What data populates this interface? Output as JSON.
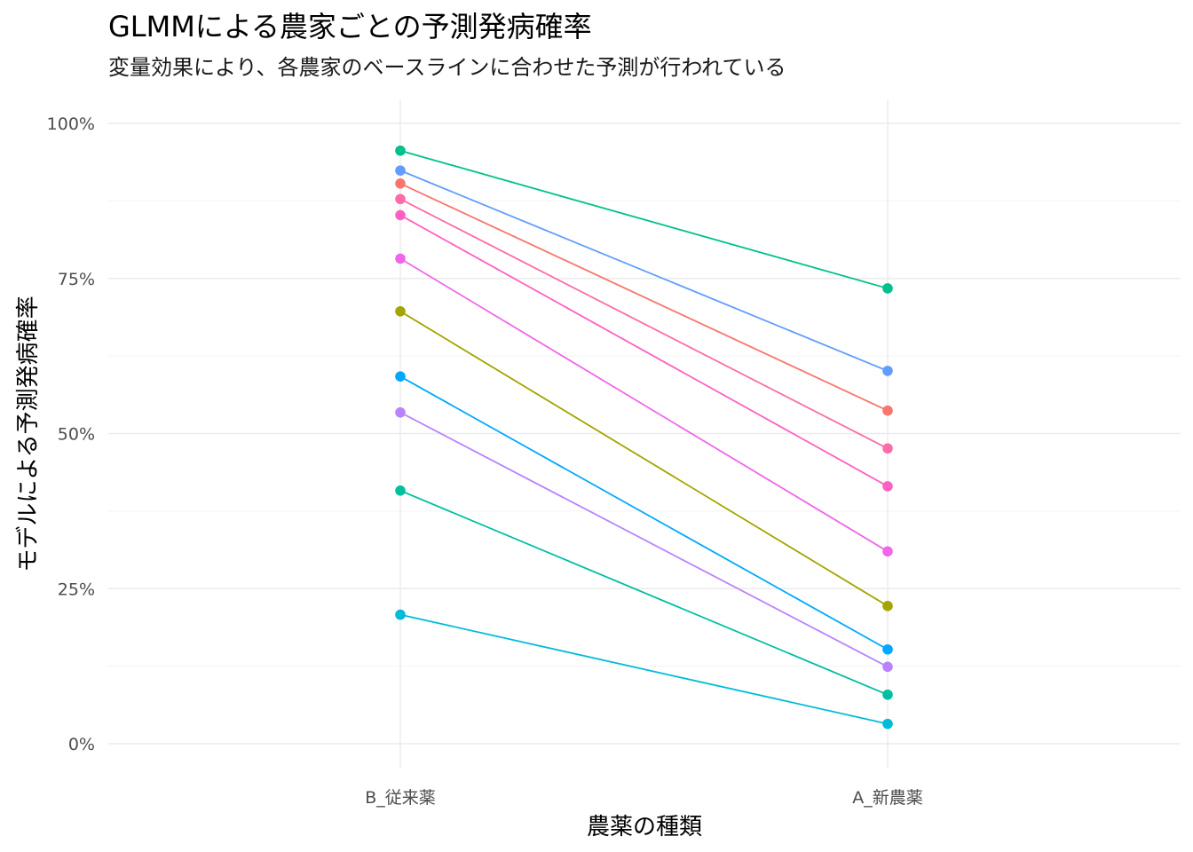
{
  "chart_data": {
    "type": "line",
    "title": "GLMMによる農家ごとの予測発病確率",
    "subtitle": "変量効果により、各農家のベースラインに合わせた予測が行われている",
    "xlabel": "農薬の種類",
    "ylabel": "モデルによる予測発病確率",
    "categories": [
      "B_従来薬",
      "A_新農薬"
    ],
    "ylim": [
      0,
      1
    ],
    "y_ticks": [
      {
        "value": 0,
        "label": "0%"
      },
      {
        "value": 0.25,
        "label": "25%"
      },
      {
        "value": 0.5,
        "label": "50%"
      },
      {
        "value": 0.75,
        "label": "75%"
      },
      {
        "value": 1,
        "label": "100%"
      }
    ],
    "grid": true,
    "legend": "none",
    "series": [
      {
        "color": "#00c08b",
        "values": [
          0.956,
          0.734
        ]
      },
      {
        "color": "#619cff",
        "values": [
          0.924,
          0.601
        ]
      },
      {
        "color": "#f8766d",
        "values": [
          0.903,
          0.537
        ]
      },
      {
        "color": "#fd6ca8",
        "values": [
          0.878,
          0.476
        ]
      },
      {
        "color": "#ff61c3",
        "values": [
          0.852,
          0.415
        ]
      },
      {
        "color": "#f066ea",
        "values": [
          0.782,
          0.31
        ]
      },
      {
        "color": "#a3a500",
        "values": [
          0.697,
          0.222
        ]
      },
      {
        "color": "#00a9ff",
        "values": [
          0.592,
          0.152
        ]
      },
      {
        "color": "#b983ff",
        "values": [
          0.534,
          0.124
        ]
      },
      {
        "color": "#00bfa0",
        "values": [
          0.408,
          0.079
        ]
      },
      {
        "color": "#00bcd8",
        "values": [
          0.208,
          0.032
        ]
      }
    ]
  }
}
